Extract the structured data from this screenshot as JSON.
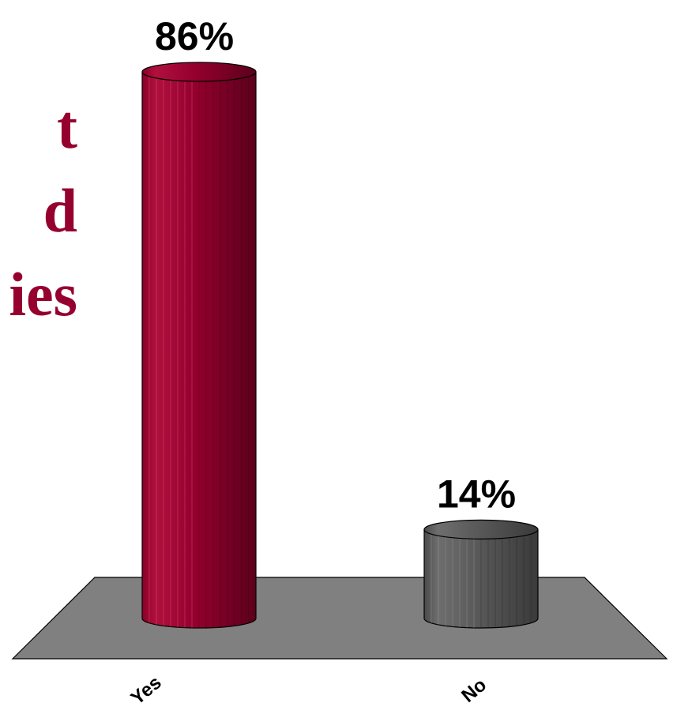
{
  "background_text": {
    "lines": [
      "t",
      "d",
      "ies"
    ],
    "color": "#96002f"
  },
  "chart_data": {
    "type": "bar",
    "categories": [
      "Yes",
      "No"
    ],
    "values": [
      86,
      14
    ],
    "data_labels": [
      "86%",
      "14%"
    ],
    "colors": [
      "#96002f",
      "#5a5a5a"
    ],
    "floor_color": "#808080",
    "ylim": [
      0,
      100
    ],
    "grid": false,
    "legend": "none",
    "style": "3d-cylinder"
  }
}
